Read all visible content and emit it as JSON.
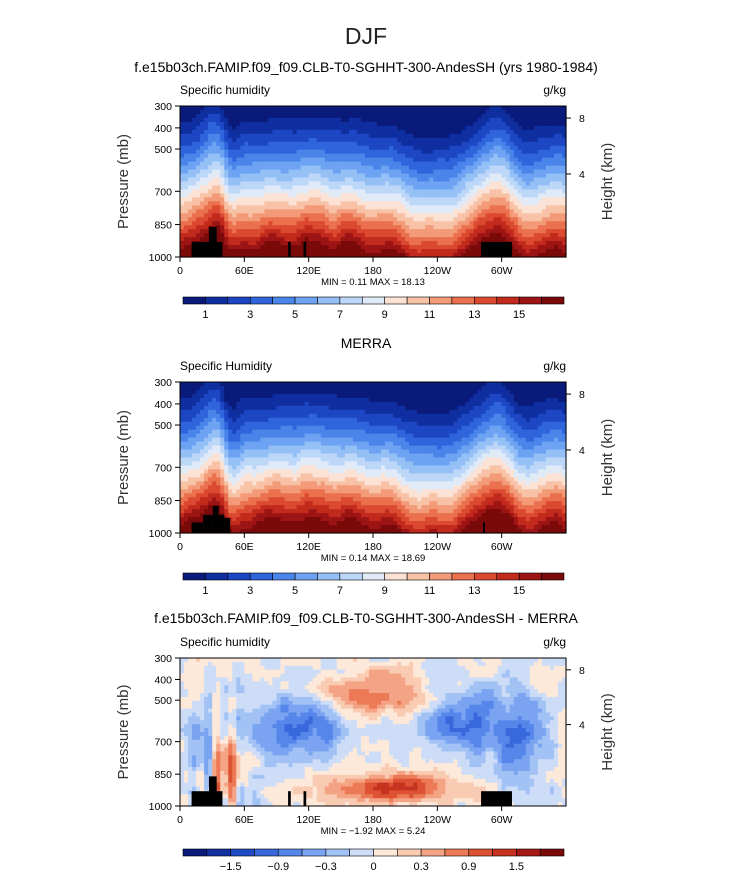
{
  "page_title": "DJF",
  "panels": [
    {
      "header": "f.e15b03ch.FAMIP.f09_f09.CLB-T0-SGHHT-300-AndesSH (yrs 1980-1984)",
      "left_label": "Specific humidity",
      "right_label": "g/kg",
      "min_max": "MIN =    0.11   MAX =   18.13",
      "colorbar_ticks": [
        "1",
        "3",
        "5",
        "7",
        "9",
        "11",
        "13",
        "15"
      ],
      "scheme": "field"
    },
    {
      "header": "MERRA",
      "left_label": "Specific Humidity",
      "right_label": "g/kg",
      "min_max": "MIN =    0.14   MAX =   18.69",
      "colorbar_ticks": [
        "1",
        "3",
        "5",
        "7",
        "9",
        "11",
        "13",
        "15"
      ],
      "scheme": "field"
    },
    {
      "header": "f.e15b03ch.FAMIP.f09_f09.CLB-T0-SGHHT-300-AndesSH - MERRA",
      "left_label": "Specific humidity",
      "right_label": "g/kg",
      "min_max": "MIN =   −1.92   MAX =    5.24",
      "colorbar_ticks": [
        "−1.5",
        "−0.9",
        "−0.3",
        "0",
        "0.3",
        "0.9",
        "1.5"
      ],
      "scheme": "diff"
    }
  ],
  "axes": {
    "y_title": "Pressure (mb)",
    "y_right_title": "Height (km)",
    "y_ticks": [
      "300",
      "400",
      "500",
      "700",
      "850",
      "1000"
    ],
    "y_right_ticks": [
      "8",
      "4"
    ],
    "x_ticks": [
      "0",
      "60E",
      "120E",
      "180",
      "120W",
      "60W"
    ]
  },
  "colors": {
    "field": [
      "#0a1a7a",
      "#0f2fa0",
      "#1c46c4",
      "#2f64dc",
      "#4a85ea",
      "#6da3f2",
      "#95c0f6",
      "#bdd7f8",
      "#e1ebf8",
      "#fbe2d5",
      "#f8c2a6",
      "#f39a78",
      "#ea704e",
      "#db4a30",
      "#c22a1d",
      "#9d1414",
      "#7a0a0a"
    ],
    "diff": [
      "#0a1a7a",
      "#12309f",
      "#1f4cc4",
      "#3868dc",
      "#5786ea",
      "#7aa4f2",
      "#a2c2f6",
      "#cddcf7",
      "#fde9da",
      "#f9cbb2",
      "#f4a384",
      "#ec7a56",
      "#dd5233",
      "#c63320",
      "#a51a14",
      "#7a0a0a"
    ]
  },
  "chart_data": [
    {
      "type": "heatmap",
      "title": "f.e15b03ch.FAMIP.f09_f09.CLB-T0-SGHHT-300-AndesSH (yrs 1980-1984)",
      "variable": "Specific humidity",
      "units": "g/kg",
      "ylabel": "Pressure (mb)",
      "ylim": [
        1000,
        300
      ],
      "x_range": [
        0,
        360
      ],
      "min": 0.11,
      "max": 18.13,
      "contour_levels": [
        1,
        3,
        5,
        7,
        9,
        11,
        13,
        15
      ]
    },
    {
      "type": "heatmap",
      "title": "MERRA",
      "variable": "Specific Humidity",
      "units": "g/kg",
      "ylabel": "Pressure (mb)",
      "ylim": [
        1000,
        300
      ],
      "x_range": [
        0,
        360
      ],
      "min": 0.14,
      "max": 18.69,
      "contour_levels": [
        1,
        3,
        5,
        7,
        9,
        11,
        13,
        15
      ]
    },
    {
      "type": "heatmap",
      "title": "f.e15b03ch.FAMIP.f09_f09.CLB-T0-SGHHT-300-AndesSH - MERRA",
      "variable": "Specific humidity",
      "units": "g/kg",
      "ylabel": "Pressure (mb)",
      "ylim": [
        1000,
        300
      ],
      "x_range": [
        0,
        360
      ],
      "min": -1.92,
      "max": 5.24,
      "contour_levels": [
        -1.5,
        -0.9,
        -0.3,
        0,
        0.3,
        0.9,
        1.5
      ]
    }
  ]
}
